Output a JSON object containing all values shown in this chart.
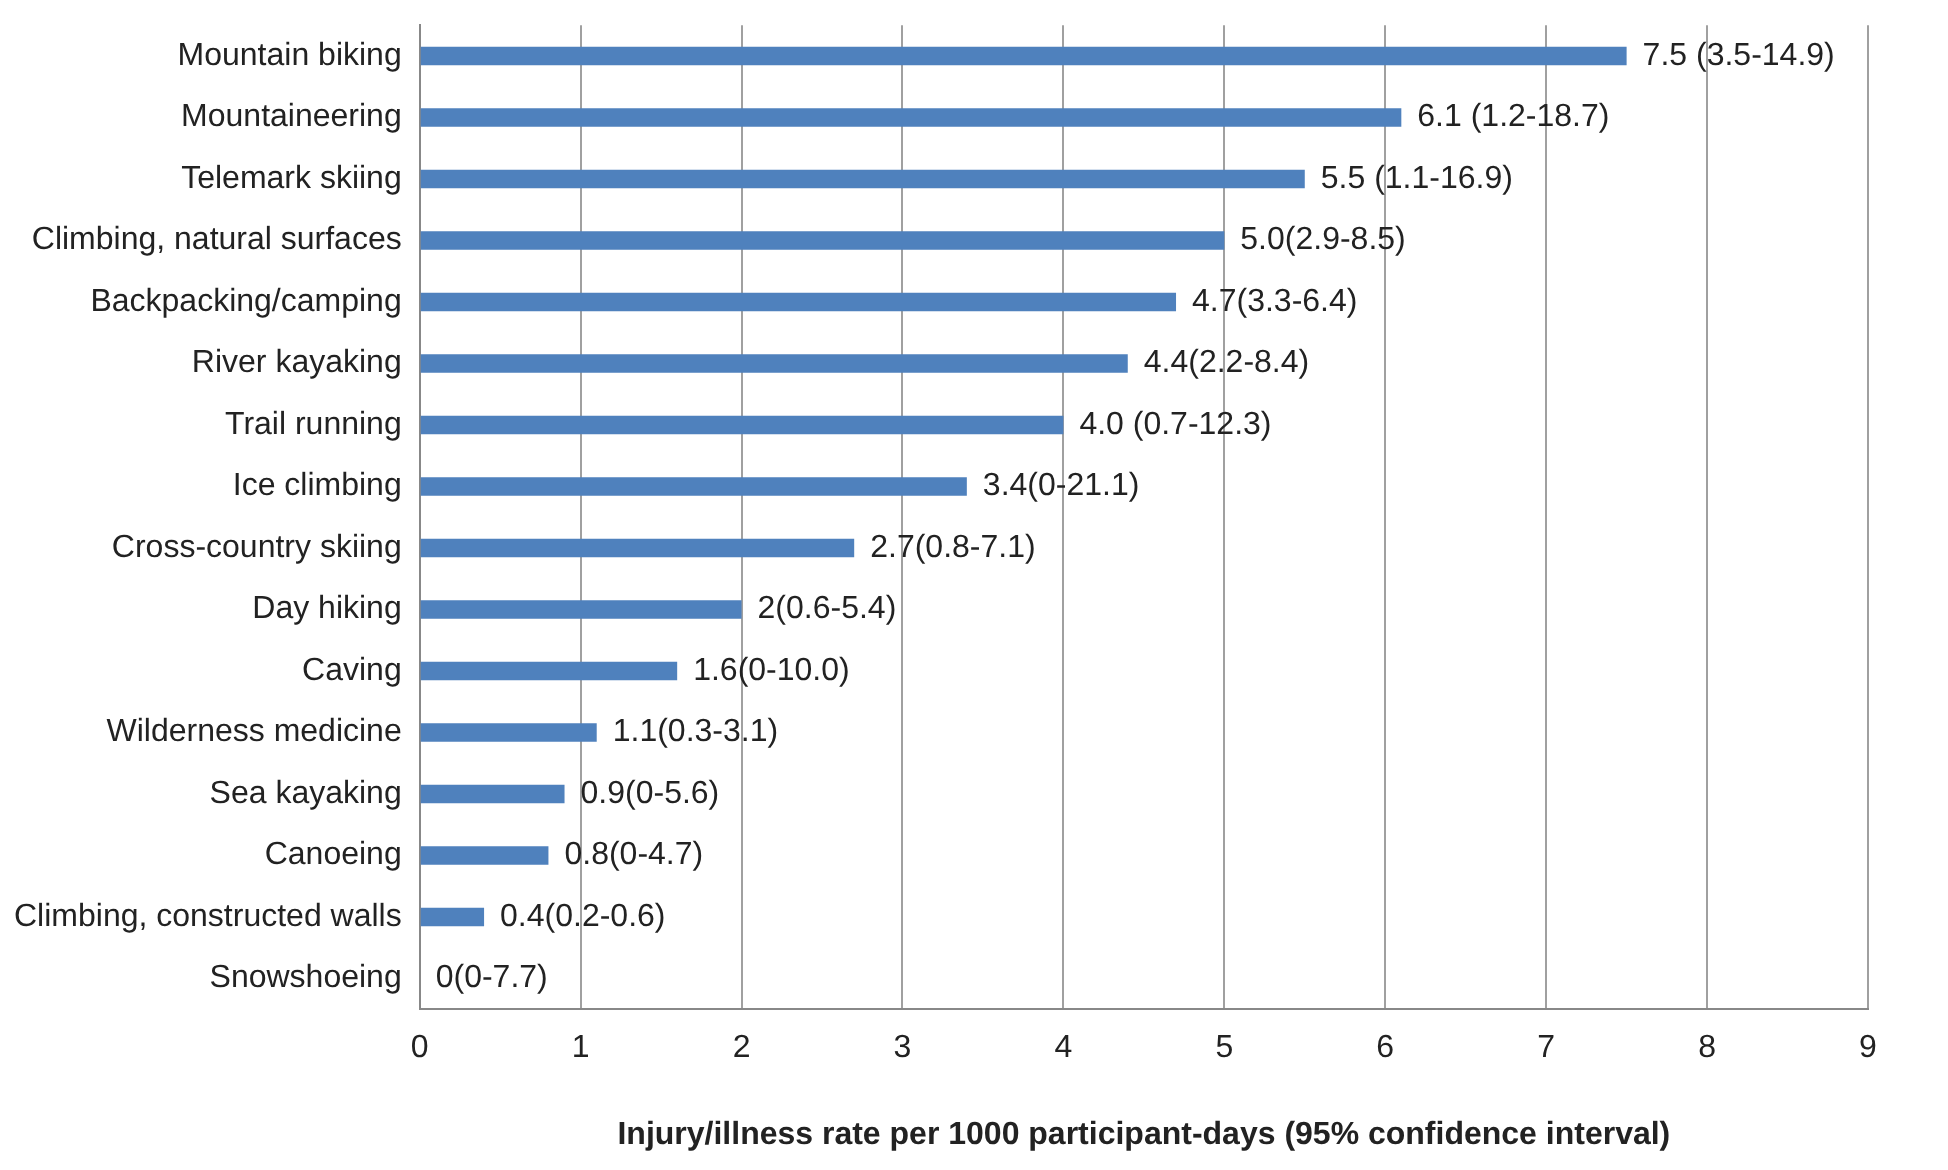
{
  "chart_data": {
    "type": "bar",
    "orientation": "horizontal",
    "xlabel": "Injury/illness rate per 1000 participant-days (95% confidence interval)",
    "categories": [
      "Mountain biking",
      "Mountaineering",
      "Telemark skiing",
      "Climbing, natural surfaces",
      "Backpacking/camping",
      "River kayaking",
      "Trail running",
      "Ice climbing",
      "Cross-country skiing",
      "Day hiking",
      "Caving",
      "Wilderness medicine",
      "Sea kayaking",
      "Canoeing",
      "Climbing, constructed walls",
      "Snowshoeing"
    ],
    "values": [
      7.5,
      6.1,
      5.5,
      5.0,
      4.7,
      4.4,
      4.0,
      3.4,
      2.7,
      2,
      1.6,
      1.1,
      0.9,
      0.8,
      0.4,
      0
    ],
    "value_labels": [
      "7.5 (3.5-14.9)",
      "6.1 (1.2-18.7)",
      "5.5 (1.1-16.9)",
      "5.0(2.9-8.5)",
      "4.7(3.3-6.4)",
      "4.4(2.2-8.4)",
      "4.0 (0.7-12.3)",
      "3.4(0-21.1)",
      "2.7(0.8-7.1)",
      "2(0.6-5.4)",
      "1.6(0-10.0)",
      "1.1(0.3-3.1)",
      "0.9(0-5.6)",
      "0.8(0-4.7)",
      "0.4(0.2-0.6)",
      "0(0-7.7)"
    ],
    "color": "#4f81bd",
    "xlim": [
      0,
      9
    ],
    "xticks": [
      0,
      1,
      2,
      3,
      4,
      5,
      6,
      7,
      8,
      9
    ],
    "grid": "x",
    "legend": false
  }
}
